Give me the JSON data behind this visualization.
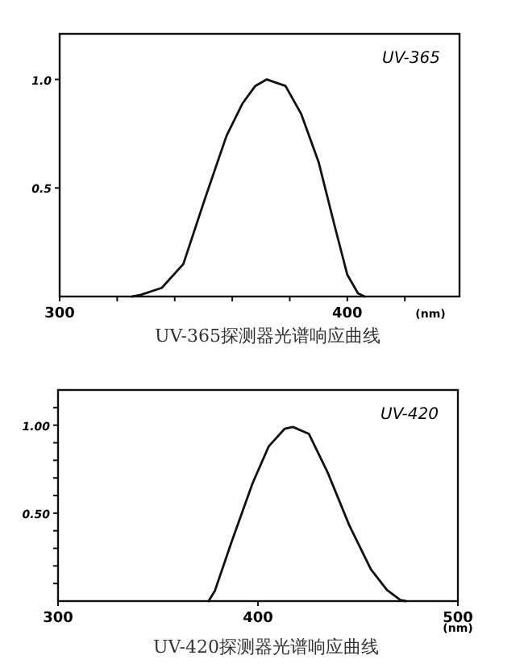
{
  "chart_data": [
    {
      "type": "line",
      "title": "UV-365探测器光谱响应曲线",
      "xlabel": "(nm)",
      "annotations": [
        "UV-365"
      ],
      "color": "#111111",
      "x": [
        325.2,
        328,
        335.5,
        343,
        350.5,
        358,
        363.6,
        368,
        372,
        378.5,
        384,
        390,
        395.7,
        400,
        403.7,
        406
      ],
      "values": [
        0,
        0.007,
        0.04,
        0.15,
        0.45,
        0.74,
        0.89,
        0.97,
        1.0,
        0.97,
        0.84,
        0.62,
        0.32,
        0.1,
        0.015,
        0
      ],
      "xlim": [
        300,
        439
      ],
      "ylim": [
        0,
        1.21
      ],
      "xticks": [
        300,
        {
          "value": 320,
          "label": null
        },
        {
          "value": 340,
          "label": null
        },
        {
          "value": 360,
          "label": null
        },
        {
          "value": 380,
          "label": null
        },
        400,
        {
          "value": 420,
          "label": null
        }
      ],
      "yticks": [
        {
          "value": 0.5,
          "label": "0.5"
        },
        {
          "value": 1.0,
          "label": "1.0"
        }
      ]
    },
    {
      "type": "line",
      "title": "UV-420探测器光谱响应曲线",
      "xlabel": "(nm)",
      "annotations": [
        "UV-420"
      ],
      "color": "#111111",
      "x": [
        375.3,
        378.5,
        386.6,
        397.3,
        405.4,
        413.4,
        417.5,
        425.5,
        434.9,
        445.7,
        456.5,
        464.5,
        471.2,
        474
      ],
      "values": [
        0,
        0.06,
        0.33,
        0.67,
        0.88,
        0.98,
        0.99,
        0.95,
        0.73,
        0.43,
        0.18,
        0.064,
        0.006,
        0
      ],
      "xlim": [
        300,
        500
      ],
      "ylim": [
        0,
        1.2
      ],
      "xticks": [
        300,
        400,
        500
      ],
      "yticks": [
        {
          "value": 0.1,
          "label": null
        },
        {
          "value": 0.2,
          "label": null
        },
        {
          "value": 0.3,
          "label": null
        },
        {
          "value": 0.4,
          "label": null
        },
        {
          "value": 0.5,
          "label": "0.50"
        },
        {
          "value": 0.6,
          "label": null
        },
        {
          "value": 0.7,
          "label": null
        },
        {
          "value": 0.8,
          "label": null
        },
        {
          "value": 0.9,
          "label": null
        },
        {
          "value": 1.0,
          "label": "1.00"
        },
        {
          "value": 1.1,
          "label": null
        }
      ]
    }
  ]
}
